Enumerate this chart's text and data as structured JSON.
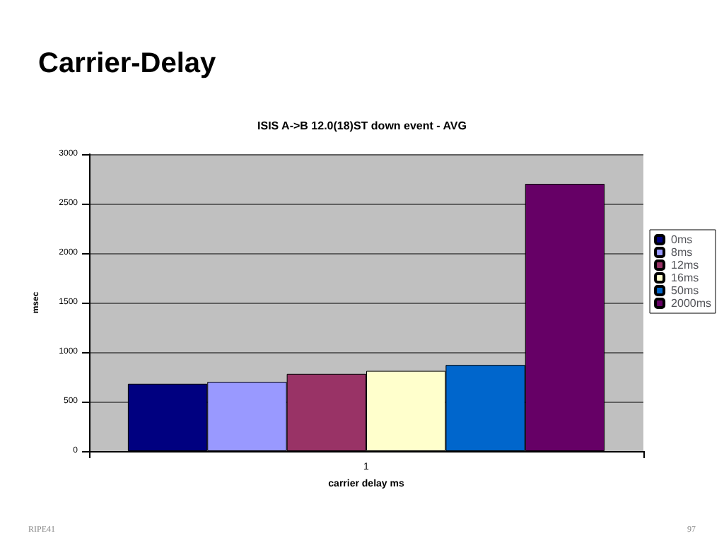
{
  "chart_data": {
    "type": "bar",
    "title": "Carrier-Delay",
    "subtitle": "ISIS A->B 12.0(18)ST down event - AVG",
    "xlabel": "carrier delay ms",
    "ylabel": "msec",
    "categories": [
      "1"
    ],
    "series": [
      {
        "name": "0ms",
        "color": "#000080",
        "values": [
          680
        ]
      },
      {
        "name": "8ms",
        "color": "#9999ff",
        "values": [
          700
        ]
      },
      {
        "name": "12ms",
        "color": "#993366",
        "values": [
          780
        ]
      },
      {
        "name": "16ms",
        "color": "#ffffcc",
        "values": [
          810
        ]
      },
      {
        "name": "50ms",
        "color": "#0066cc",
        "values": [
          870
        ]
      },
      {
        "name": "2000ms",
        "color": "#660066",
        "values": [
          2700
        ]
      }
    ],
    "ylim": [
      0,
      3000
    ],
    "yticks": [
      0,
      500,
      1000,
      1500,
      2000,
      2500,
      3000
    ],
    "grid": "y",
    "legend": "right",
    "annotations": [
      "RIPE41",
      "97"
    ]
  }
}
